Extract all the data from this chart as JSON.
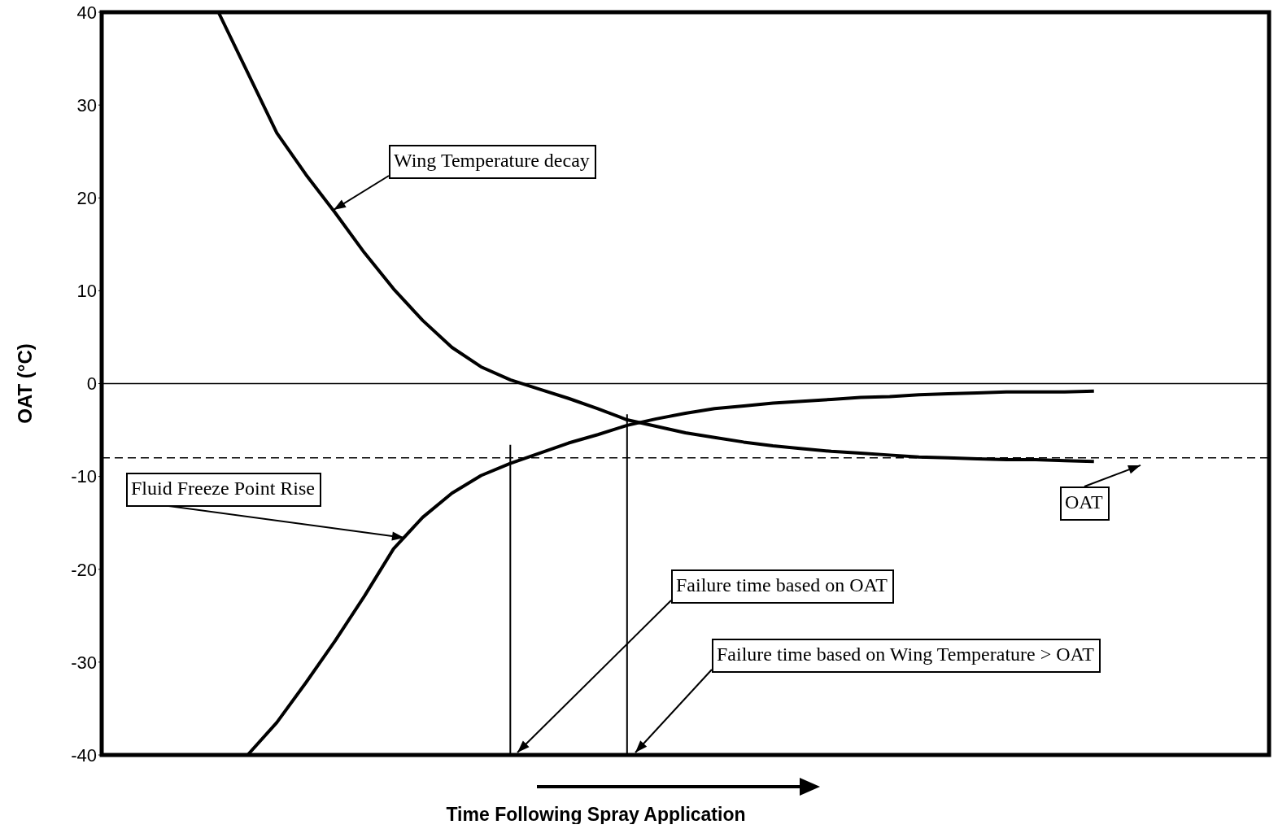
{
  "chart_data": {
    "type": "line",
    "ylabel": "OAT (°C)",
    "xlabel": "Time Following Spray Application",
    "ylim": [
      -40,
      40
    ],
    "yticks": [
      -40,
      -30,
      -20,
      -10,
      0,
      10,
      20,
      30,
      40
    ],
    "grid": false,
    "legend": false,
    "marker": "none",
    "categories": [
      null,
      null,
      null,
      null,
      null,
      null,
      null,
      null,
      null,
      null,
      null,
      null,
      null,
      null,
      null,
      null,
      null,
      null,
      null,
      null,
      null,
      null,
      null,
      null,
      null,
      null,
      null,
      null,
      null,
      null,
      null,
      null,
      null,
      null,
      null,
      null,
      null,
      null,
      null,
      null,
      null
    ],
    "series": [
      {
        "color": "#000000",
        "values": [
          null,
          null,
          null,
          null,
          40,
          33.5,
          27,
          22.5,
          18.4,
          14.1,
          10.2,
          6.8,
          3.9,
          1.8,
          0.4,
          -0.6,
          -1.6,
          -2.7,
          -3.9,
          -4.6,
          -5.3,
          -5.8,
          -6.3,
          -6.7,
          -7,
          -7.3,
          -7.5,
          -7.7,
          -7.9,
          -8,
          -8.1,
          -8.2,
          -8.2,
          -8.3,
          -8.4,
          null,
          null,
          null,
          null,
          null,
          null
        ]
      },
      {
        "color": "#000000",
        "values": [
          null,
          null,
          null,
          null,
          null,
          -40,
          -36.5,
          -32.2,
          -27.7,
          -22.9,
          -17.8,
          -14.4,
          -11.8,
          -9.9,
          -8.6,
          -7.5,
          -6.4,
          -5.5,
          -4.5,
          -3.8,
          -3.2,
          -2.7,
          -2.4,
          -2.1,
          -1.9,
          -1.7,
          -1.5,
          -1.4,
          -1.2,
          -1.1,
          -1,
          -0.9,
          -0.9,
          -0.9,
          -0.8,
          null,
          null,
          null,
          null,
          null,
          null
        ]
      },
      {
        "type": "bar",
        "color": "#000000",
        "base": [
          null,
          null,
          null,
          null,
          null,
          null,
          null,
          null,
          null,
          null,
          null,
          null,
          null,
          null,
          -40,
          null,
          null,
          null,
          -40,
          null,
          null,
          null,
          null,
          null,
          null,
          null,
          null,
          null,
          null,
          null,
          null,
          null,
          null,
          null,
          null,
          null,
          null,
          null,
          null,
          null,
          null
        ],
        "values": [
          null,
          null,
          null,
          null,
          null,
          null,
          null,
          null,
          null,
          null,
          null,
          null,
          null,
          null,
          33.4,
          null,
          null,
          null,
          36.7,
          null,
          null,
          null,
          null,
          null,
          null,
          null,
          null,
          null,
          null,
          null,
          null,
          null,
          null,
          null,
          null,
          null,
          null,
          null,
          null,
          null,
          null
        ]
      }
    ],
    "ref_lines": [
      {
        "axis": "y",
        "value": 0,
        "color": "#000000",
        "line_style": "solid"
      },
      {
        "axis": "y",
        "value": -8,
        "color": "#000000",
        "line_style": "dashed"
      }
    ],
    "annotations": [
      "Wing Temperature decay",
      "Fluid Freeze Point Rise",
      {
        "text": "OAT",
        "y": -8.8
      },
      "Failure time based on OAT",
      "Failure time based on Wing Temperature > OAT"
    ]
  }
}
